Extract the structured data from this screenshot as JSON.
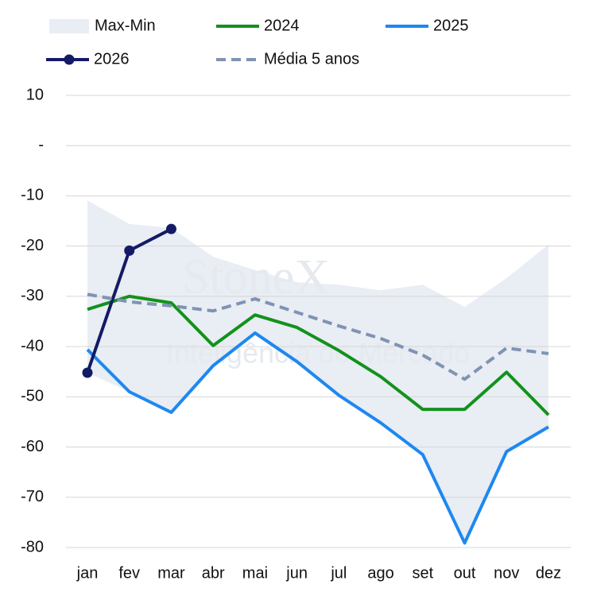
{
  "chart_data": {
    "type": "line",
    "categories": [
      "jan",
      "fev",
      "mar",
      "abr",
      "mai",
      "jun",
      "jul",
      "ago",
      "set",
      "out",
      "nov",
      "dez"
    ],
    "band": {
      "name": "Max-Min",
      "color": "#e9edf4",
      "upper": [
        -10.9,
        -15.6,
        -16.4,
        -22.1,
        -24.8,
        -27.2,
        -27.7,
        -28.8,
        -27.7,
        -32.1,
        -26.4,
        -19.7
      ],
      "lower": [
        -45.2,
        -49.0,
        -53.1,
        -43.8,
        -37.3,
        -43.0,
        -49.7,
        -55.2,
        -61.5,
        -79.1,
        -60.9,
        -56.0
      ]
    },
    "series": [
      {
        "name": "2024",
        "color": "#12921c",
        "values": [
          -32.6,
          -30.0,
          -31.3,
          -39.8,
          -33.7,
          -36.2,
          -40.8,
          -46.0,
          -52.5,
          -52.5,
          -45.1,
          -53.6
        ]
      },
      {
        "name": "2025",
        "color": "#1e88f0",
        "values": [
          -40.6,
          -49.0,
          -53.1,
          -43.8,
          -37.3,
          -43.0,
          -49.7,
          -55.2,
          -61.5,
          -79.1,
          -60.9,
          -56.0
        ]
      },
      {
        "name": "2026",
        "color": "#131b66",
        "markers": true,
        "values": [
          -45.2,
          -20.9,
          -16.6,
          null,
          null,
          null,
          null,
          null,
          null,
          null,
          null,
          null
        ]
      },
      {
        "name": "Média 5 anos",
        "color": "#7f93b3",
        "dashed": true,
        "values": [
          -29.6,
          -31.1,
          -31.9,
          -32.9,
          -30.5,
          -33.2,
          -35.9,
          -38.4,
          -41.7,
          -46.5,
          -40.3,
          -41.4
        ]
      }
    ],
    "ylim": [
      10,
      -80
    ],
    "yticks": [
      10,
      {
        "value": 0,
        "label": "-"
      },
      -10,
      -20,
      -30,
      -40,
      -50,
      -60,
      -70,
      -80
    ],
    "grid": true,
    "watermark": {
      "title": "StoneX",
      "subtitle": "Inteligência de Mercado"
    }
  }
}
